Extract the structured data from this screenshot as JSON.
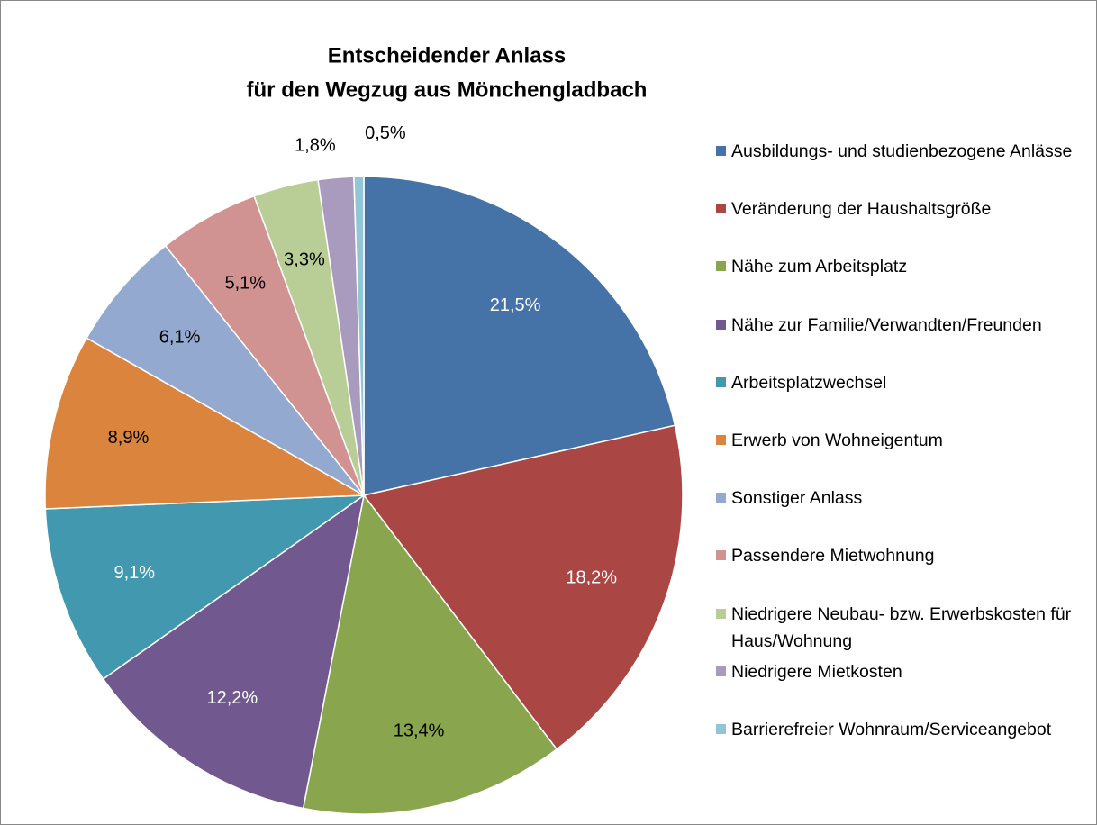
{
  "chart_data": {
    "type": "pie",
    "title": [
      "Entscheidender Anlass",
      "für den Wegzug aus Mönchengladbach"
    ],
    "categories": [
      "Ausbildungs- und studienbezogene Anlässe",
      "Veränderung der Haushaltsgröße",
      "Nähe zum Arbeitsplatz",
      "Nähe zur Familie/Verwandten/Freunden",
      "Arbeitsplatzwechsel",
      "Erwerb von Wohneigentum",
      "Sonstiger Anlass",
      "Passendere Mietwohnung",
      "Niedrigere Neubau- bzw. Erwerbskosten für Haus/Wohnung",
      "Niedrigere Mietkosten",
      "Barrierefreier Wohnraum/Serviceangebot"
    ],
    "values": [
      21.5,
      18.2,
      13.4,
      12.2,
      9.1,
      8.9,
      6.1,
      5.1,
      3.3,
      1.8,
      0.5
    ],
    "value_labels": [
      "21,5%",
      "18,2%",
      "13,4%",
      "12,2%",
      "9,1%",
      "8,9%",
      "6,1%",
      "5,1%",
      "3,3%",
      "1,8%",
      "0,5%"
    ],
    "colors": [
      "#4572a7",
      "#aa4643",
      "#89a54e",
      "#71588f",
      "#4198af",
      "#db843d",
      "#93a9cf",
      "#d19392",
      "#b9cd96",
      "#a99bbd",
      "#92c5d6"
    ],
    "legend": "right"
  }
}
